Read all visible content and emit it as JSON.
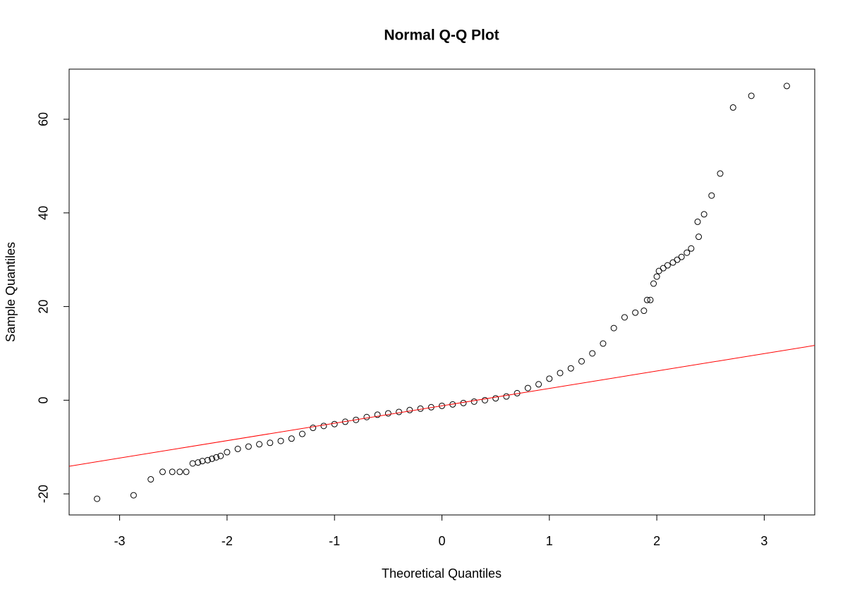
{
  "chart_data": {
    "type": "scatter",
    "title": "Normal Q-Q Plot",
    "x_label": "Theoretical Quantiles",
    "y_label": "Sample Quantiles",
    "point_color": "#000000",
    "x": [
      -3.21,
      -2.87,
      -2.71,
      -2.6,
      -2.51,
      -2.44,
      -2.38,
      -2.32,
      -2.27,
      -2.23,
      -2.18,
      -2.14,
      -2.1,
      -2.06,
      -2.0,
      -1.9,
      -1.8,
      -1.7,
      -1.6,
      -1.5,
      -1.4,
      -1.3,
      -1.2,
      -1.1,
      -1.0,
      -0.9,
      -0.8,
      -0.7,
      -0.6,
      -0.5,
      -0.4,
      -0.3,
      -0.2,
      -0.1,
      0,
      0.1,
      0.2,
      0.3,
      0.4,
      0.5,
      0.6,
      0.7,
      0.8,
      0.9,
      1.0,
      1.1,
      1.2,
      1.3,
      1.4,
      1.5,
      1.6,
      1.7,
      1.8,
      1.88,
      1.91,
      1.94,
      1.97,
      2.0,
      2.02,
      2.06,
      2.1,
      2.15,
      2.19,
      2.23,
      2.28,
      2.32,
      2.38,
      2.39,
      2.44,
      2.51,
      2.59,
      2.71,
      2.88,
      3.21
    ],
    "values": [
      -21.05,
      -20.3,
      -16.9,
      -15.3,
      -15.3,
      -15.3,
      -15.3,
      -13.5,
      -13.3,
      -13.0,
      -12.8,
      -12.5,
      -12.2,
      -11.9,
      -11.1,
      -10.4,
      -9.9,
      -9.4,
      -9.1,
      -8.7,
      -8.2,
      -7.2,
      -5.9,
      -5.5,
      -5.1,
      -4.6,
      -4.2,
      -3.6,
      -3.1,
      -2.8,
      -2.5,
      -2.1,
      -1.8,
      -1.5,
      -1.2,
      -0.9,
      -0.6,
      -0.3,
      0,
      0.4,
      0.8,
      1.5,
      2.6,
      3.4,
      4.6,
      5.8,
      6.8,
      8.3,
      10.0,
      12.1,
      15.4,
      17.7,
      18.7,
      19.1,
      21.4,
      21.4,
      24.9,
      26.4,
      27.6,
      28.2,
      28.8,
      29.4,
      30.0,
      30.6,
      31.5,
      32.4,
      38.1,
      34.9,
      39.7,
      43.7,
      48.4,
      62.5,
      65.0,
      67.1
    ],
    "ref_line": {
      "x": [
        -3.47,
        3.47
      ],
      "values": [
        -14.1,
        11.7
      ],
      "color": "#ff0000"
    },
    "xlim": [
      -3.47,
      3.47
    ],
    "ylim": [
      -24.5,
      70.7
    ],
    "xticks": [
      -3,
      -2,
      -1,
      0,
      1,
      2,
      3
    ],
    "yticks": [
      -20,
      0,
      20,
      40,
      60
    ]
  }
}
